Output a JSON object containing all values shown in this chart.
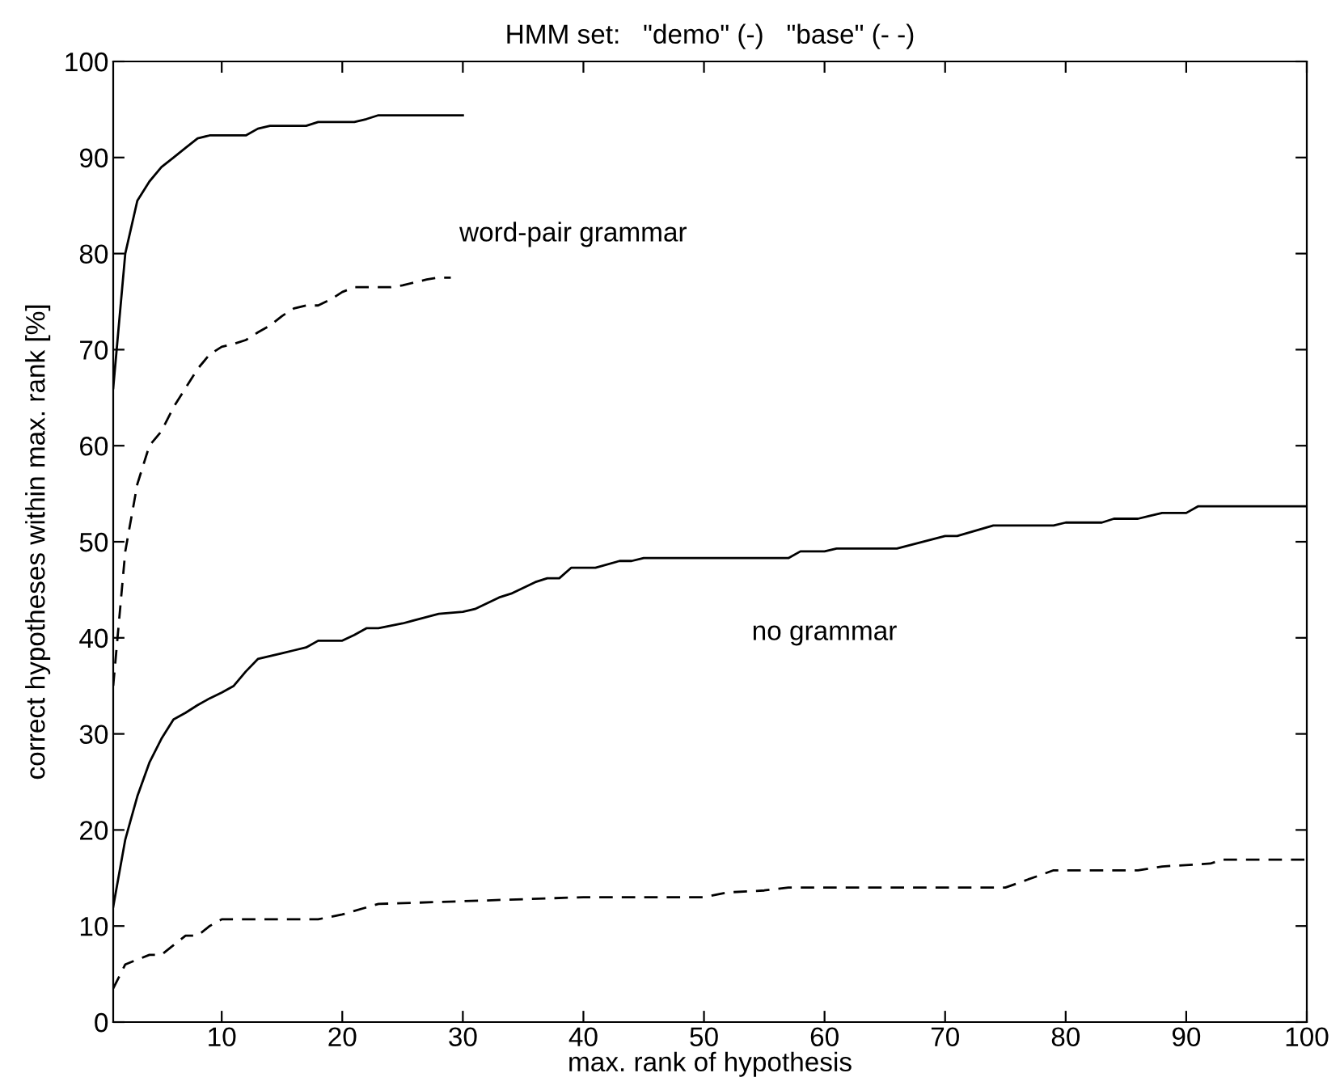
{
  "chart_data": {
    "type": "line",
    "title": "HMM set:   \"demo\" (-)   \"base\" (- -)",
    "xlabel": "max. rank of hypothesis",
    "ylabel": "correct hypotheses within max. rank [%]",
    "annotations": [
      "word-pair grammar",
      "no grammar"
    ],
    "xlim": [
      1,
      100
    ],
    "ylim": [
      0,
      100
    ],
    "xticks": [
      10,
      20,
      30,
      40,
      50,
      60,
      70,
      80,
      90,
      100
    ],
    "yticks": [
      0,
      10,
      20,
      30,
      40,
      50,
      60,
      70,
      80,
      90,
      100
    ],
    "grid": false,
    "legend": false,
    "marker": "none",
    "series": [
      {
        "color": "#000000",
        "line_style": "solid",
        "x": [
          1,
          2,
          3,
          4,
          5,
          6,
          7,
          8,
          9,
          10,
          11,
          12,
          13,
          14,
          15,
          16,
          17,
          18,
          19,
          20,
          21,
          22,
          23,
          24,
          25,
          26,
          27,
          28,
          29,
          30
        ],
        "values": [
          66,
          80,
          85.5,
          87.5,
          89,
          90,
          91,
          92,
          92.3,
          92.3,
          92.3,
          92.3,
          93,
          93.3,
          93.3,
          93.3,
          93.3,
          93.7,
          93.7,
          93.7,
          93.7,
          94,
          94.4,
          94.4,
          94.4,
          94.4,
          94.4,
          94.4,
          94.4,
          94.4
        ]
      },
      {
        "color": "#000000",
        "line_style": "dashed",
        "x": [
          1,
          2,
          3,
          4,
          5,
          6,
          7,
          8,
          9,
          10,
          11,
          12,
          13,
          14,
          15,
          16,
          17,
          18,
          19,
          20,
          21,
          22,
          23,
          24,
          25,
          26,
          27,
          28,
          29
        ],
        "values": [
          35,
          49,
          56,
          60,
          61.5,
          64,
          66,
          68,
          69.5,
          70.3,
          70.6,
          71,
          71.8,
          72.5,
          73.5,
          74.3,
          74.6,
          74.6,
          75.2,
          76,
          76.5,
          76.5,
          76.5,
          76.5,
          76.7,
          77,
          77.3,
          77.5,
          77.5
        ]
      },
      {
        "color": "#000000",
        "line_style": "solid",
        "x": [
          1,
          2,
          3,
          4,
          5,
          6,
          7,
          8,
          9,
          10,
          11,
          12,
          13,
          14,
          15,
          16,
          17,
          18,
          19,
          20,
          21,
          22,
          23,
          25,
          28,
          30,
          31,
          33,
          34,
          36,
          37,
          38,
          39,
          41,
          43,
          44,
          45,
          57,
          58,
          60,
          61,
          66,
          70,
          71,
          74,
          79,
          80,
          83,
          84,
          86,
          87,
          88,
          90,
          91,
          100
        ],
        "values": [
          12,
          19,
          23.5,
          27,
          29.5,
          31.5,
          32.2,
          33,
          33.7,
          34.3,
          35,
          36.5,
          37.8,
          38.1,
          38.4,
          38.7,
          39,
          39.7,
          39.7,
          39.7,
          40.3,
          41,
          41,
          41.5,
          42.5,
          42.7,
          43,
          44.2,
          44.6,
          45.8,
          46.2,
          46.2,
          47.3,
          47.3,
          48,
          48,
          48.3,
          48.3,
          49,
          49,
          49.3,
          49.3,
          50.6,
          50.6,
          51.7,
          51.7,
          52,
          52,
          52.4,
          52.4,
          52.7,
          53,
          53,
          53.7,
          53.7
        ]
      },
      {
        "color": "#000000",
        "line_style": "dashed",
        "x": [
          1,
          2,
          3,
          4,
          5,
          6,
          7,
          8,
          9,
          10,
          17,
          18,
          20,
          23,
          28,
          40,
          50,
          52,
          55,
          57,
          75,
          79,
          86,
          88,
          92,
          93,
          100
        ],
        "values": [
          3.5,
          6,
          6.5,
          7,
          7,
          8,
          9,
          9,
          10,
          10.7,
          10.7,
          10.7,
          11.2,
          12.3,
          12.5,
          13,
          13,
          13.5,
          13.7,
          14,
          14,
          15.8,
          15.8,
          16.2,
          16.5,
          16.9,
          16.9
        ]
      }
    ]
  }
}
